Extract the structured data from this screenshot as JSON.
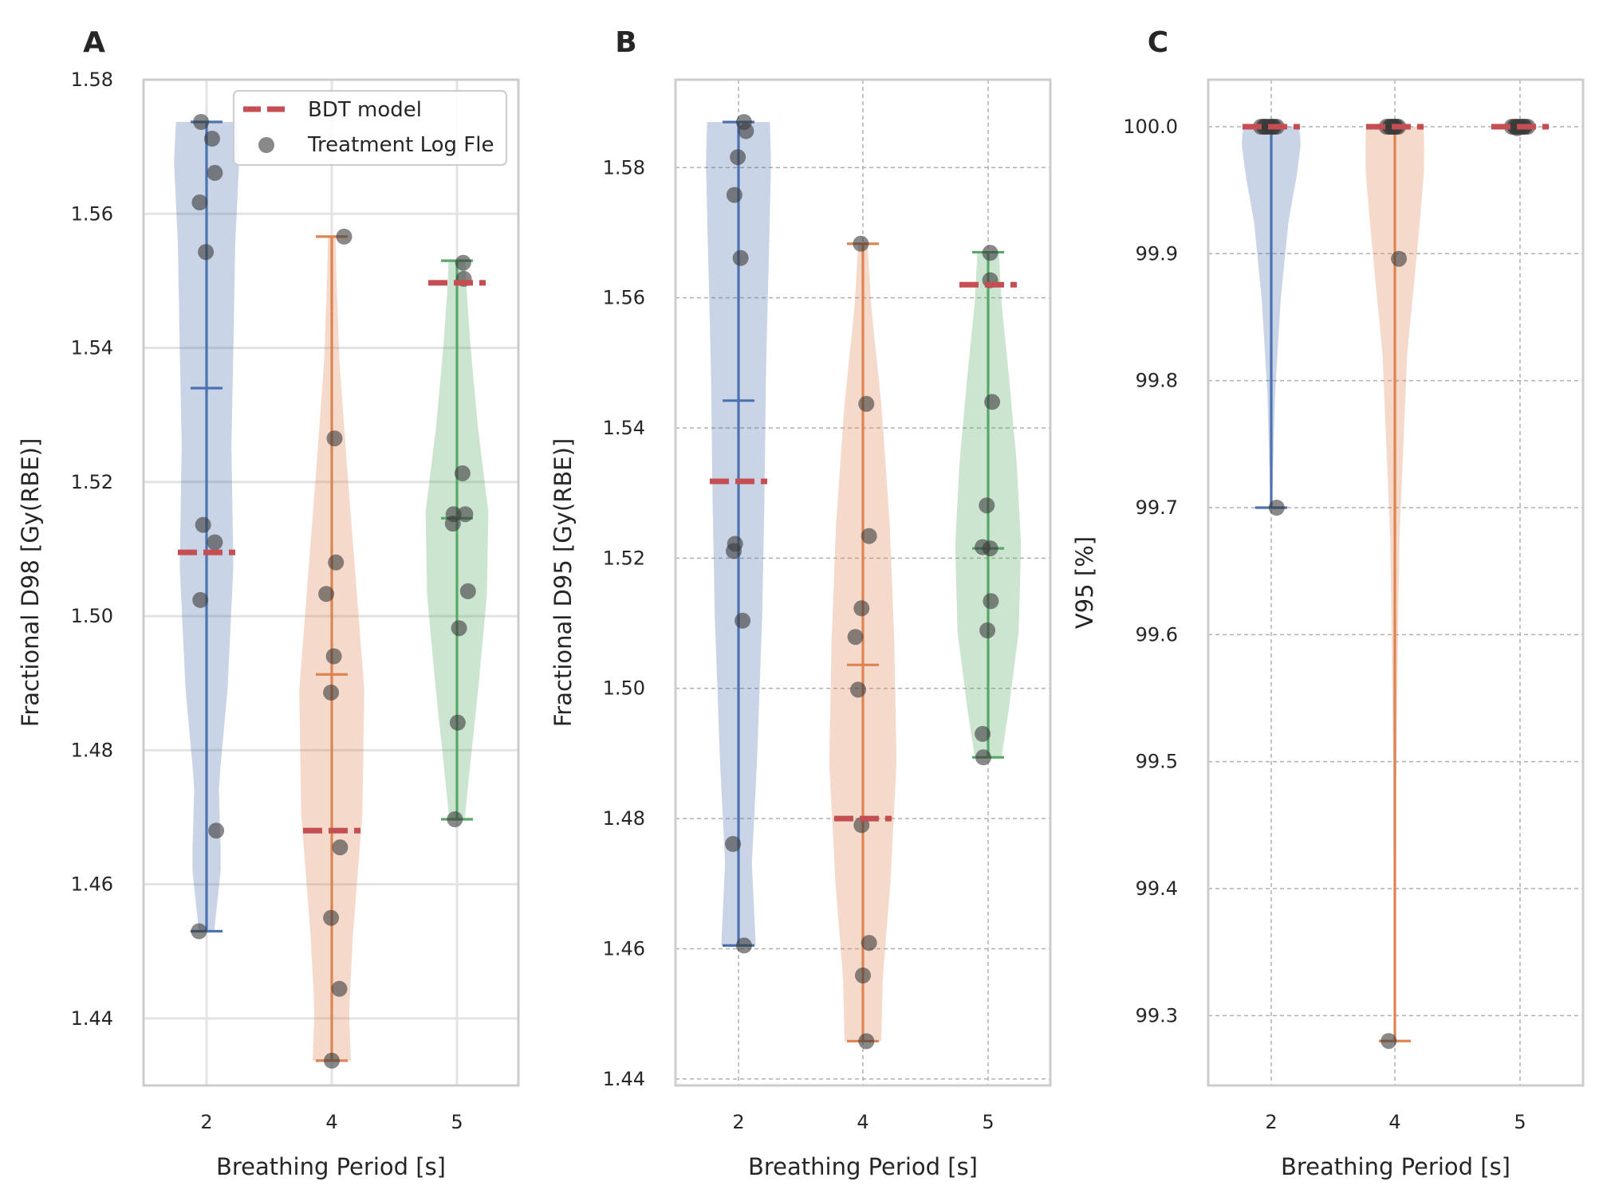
{
  "chart_data": [
    {
      "type": "violin",
      "panel_label": "A",
      "xlabel": "Breathing Period [s]",
      "ylabel": "Fractional D98 [Gy(RBE)]",
      "categories": [
        "2",
        "4",
        "5"
      ],
      "ylim": [
        1.43,
        1.58
      ],
      "yticks": [
        1.44,
        1.46,
        1.48,
        1.5,
        1.52,
        1.54,
        1.56,
        1.58
      ],
      "ytick_labels": [
        "1.44",
        "1.46",
        "1.48",
        "1.50",
        "1.52",
        "1.54",
        "1.56",
        "1.58"
      ],
      "grid": true,
      "grid_style": "solid",
      "legend": {
        "placement": "top-right",
        "entries": [
          {
            "label": "BDT model",
            "marker": "dashed-line",
            "color": "#c44e52"
          },
          {
            "label": "Treatment Log Fle",
            "marker": "circle",
            "color": "#555555"
          }
        ]
      },
      "series": [
        {
          "category": "2",
          "color": "#4c72b0",
          "min": 1.453,
          "max": 1.5737,
          "median": 1.534,
          "bdt_model": 1.5095,
          "points": [
            {
              "x": 1.92,
              "y": 1.5737
            },
            {
              "x": 2.08,
              "y": 1.5712
            },
            {
              "x": 2.12,
              "y": 1.5661
            },
            {
              "x": 1.9,
              "y": 1.5617
            },
            {
              "x": 1.99,
              "y": 1.5543
            },
            {
              "x": 1.95,
              "y": 1.5136
            },
            {
              "x": 2.12,
              "y": 1.511
            },
            {
              "x": 1.91,
              "y": 1.5024
            },
            {
              "x": 2.14,
              "y": 1.468
            },
            {
              "x": 1.89,
              "y": 1.453
            }
          ]
        },
        {
          "category": "4",
          "color": "#dd8452",
          "min": 1.4337,
          "max": 1.5566,
          "median": 1.4913,
          "bdt_model": 1.468,
          "points": [
            {
              "x": 4.18,
              "y": 1.5566
            },
            {
              "x": 4.04,
              "y": 1.5265
            },
            {
              "x": 4.06,
              "y": 1.508
            },
            {
              "x": 3.92,
              "y": 1.5033
            },
            {
              "x": 4.03,
              "y": 1.494
            },
            {
              "x": 3.99,
              "y": 1.4886
            },
            {
              "x": 4.12,
              "y": 1.4655
            },
            {
              "x": 3.99,
              "y": 1.455
            },
            {
              "x": 4.11,
              "y": 1.4444
            },
            {
              "x": 4.0,
              "y": 1.4337
            }
          ]
        },
        {
          "category": "5",
          "color": "#55a868",
          "min": 1.4697,
          "max": 1.553,
          "median": 1.5146,
          "bdt_model": 1.5497,
          "points": [
            {
              "x": 5.09,
              "y": 1.5527
            },
            {
              "x": 5.1,
              "y": 1.5503
            },
            {
              "x": 5.08,
              "y": 1.5213
            },
            {
              "x": 4.95,
              "y": 1.5152
            },
            {
              "x": 5.12,
              "y": 1.5152
            },
            {
              "x": 4.94,
              "y": 1.5138
            },
            {
              "x": 5.16,
              "y": 1.5037
            },
            {
              "x": 5.03,
              "y": 1.4982
            },
            {
              "x": 5.01,
              "y": 1.4841
            },
            {
              "x": 4.97,
              "y": 1.4697
            }
          ]
        }
      ]
    },
    {
      "type": "violin",
      "panel_label": "B",
      "xlabel": "Breathing Period [s]",
      "ylabel": "Fractional D95 [Gy(RBE)]",
      "categories": [
        "2",
        "4",
        "5"
      ],
      "ylim": [
        1.439,
        1.5935
      ],
      "yticks": [
        1.44,
        1.46,
        1.48,
        1.5,
        1.52,
        1.54,
        1.56,
        1.58
      ],
      "ytick_labels": [
        "1.44",
        "1.46",
        "1.48",
        "1.50",
        "1.52",
        "1.54",
        "1.56",
        "1.58"
      ],
      "grid": true,
      "grid_style": "dashed",
      "series": [
        {
          "category": "2",
          "color": "#4c72b0",
          "min": 1.4605,
          "max": 1.587,
          "median": 1.5442,
          "bdt_model": 1.5318,
          "points": [
            {
              "x": 2.08,
              "y": 1.587
            },
            {
              "x": 2.11,
              "y": 1.5856
            },
            {
              "x": 1.99,
              "y": 1.5816
            },
            {
              "x": 1.94,
              "y": 1.5758
            },
            {
              "x": 2.03,
              "y": 1.5661
            },
            {
              "x": 1.95,
              "y": 1.5222
            },
            {
              "x": 1.93,
              "y": 1.5211
            },
            {
              "x": 2.06,
              "y": 1.5104
            },
            {
              "x": 1.92,
              "y": 1.4761
            },
            {
              "x": 2.08,
              "y": 1.4605
            }
          ]
        },
        {
          "category": "4",
          "color": "#dd8452",
          "min": 1.4458,
          "max": 1.5683,
          "median": 1.5036,
          "bdt_model": 1.48,
          "points": [
            {
              "x": 3.97,
              "y": 1.5683
            },
            {
              "x": 4.05,
              "y": 1.5437
            },
            {
              "x": 4.09,
              "y": 1.5234
            },
            {
              "x": 3.98,
              "y": 1.5123
            },
            {
              "x": 3.89,
              "y": 1.5079
            },
            {
              "x": 3.93,
              "y": 1.4998
            },
            {
              "x": 3.98,
              "y": 1.479
            },
            {
              "x": 4.09,
              "y": 1.4609
            },
            {
              "x": 4.0,
              "y": 1.4559
            },
            {
              "x": 4.05,
              "y": 1.4458
            }
          ]
        },
        {
          "category": "5",
          "color": "#55a868",
          "min": 1.4894,
          "max": 1.567,
          "median": 1.5215,
          "bdt_model": 1.562,
          "points": [
            {
              "x": 5.03,
              "y": 1.5669
            },
            {
              "x": 5.03,
              "y": 1.5627
            },
            {
              "x": 5.06,
              "y": 1.544
            },
            {
              "x": 4.98,
              "y": 1.5281
            },
            {
              "x": 4.92,
              "y": 1.5217
            },
            {
              "x": 5.03,
              "y": 1.5215
            },
            {
              "x": 5.04,
              "y": 1.5134
            },
            {
              "x": 4.99,
              "y": 1.5089
            },
            {
              "x": 4.92,
              "y": 1.493
            },
            {
              "x": 4.93,
              "y": 1.4894
            }
          ]
        }
      ]
    },
    {
      "type": "violin",
      "panel_label": "C",
      "xlabel": "Breathing Period [s]",
      "ylabel": "V95 [%]",
      "categories": [
        "2",
        "4",
        "5"
      ],
      "ylim": [
        99.245,
        100.037
      ],
      "yticks": [
        99.3,
        99.4,
        99.5,
        99.6,
        99.7,
        99.8,
        99.9,
        100.0
      ],
      "ytick_labels": [
        "99.3",
        "99.4",
        "99.5",
        "99.6",
        "99.7",
        "99.8",
        "99.9",
        "100.0"
      ],
      "grid": true,
      "grid_style": "dashed",
      "series": [
        {
          "category": "2",
          "color": "#4c72b0",
          "min": 99.7,
          "max": 100.0,
          "median": 100.0,
          "bdt_model": 100.0,
          "points": [
            {
              "x": 1.85,
              "y": 100.0
            },
            {
              "x": 1.89,
              "y": 100.0
            },
            {
              "x": 1.93,
              "y": 100.0
            },
            {
              "x": 1.97,
              "y": 100.0
            },
            {
              "x": 2.0,
              "y": 100.0
            },
            {
              "x": 2.04,
              "y": 100.0
            },
            {
              "x": 2.08,
              "y": 100.0
            },
            {
              "x": 1.91,
              "y": 100.0
            },
            {
              "x": 2.02,
              "y": 100.0
            },
            {
              "x": 2.08,
              "y": 99.7
            }
          ]
        },
        {
          "category": "4",
          "color": "#dd8452",
          "min": 99.28,
          "max": 100.0,
          "median": 100.0,
          "bdt_model": 100.0,
          "points": [
            {
              "x": 3.88,
              "y": 100.0
            },
            {
              "x": 3.92,
              "y": 100.0
            },
            {
              "x": 3.96,
              "y": 100.0
            },
            {
              "x": 3.99,
              "y": 100.0
            },
            {
              "x": 4.02,
              "y": 100.0
            },
            {
              "x": 4.05,
              "y": 100.0
            },
            {
              "x": 3.94,
              "y": 100.0
            },
            {
              "x": 4.0,
              "y": 100.0
            },
            {
              "x": 4.06,
              "y": 99.896
            },
            {
              "x": 3.91,
              "y": 99.28
            }
          ]
        },
        {
          "category": "5",
          "color": "#55a868",
          "min": 99.999,
          "max": 100.0,
          "median": 99.999,
          "bdt_model": 100.0,
          "points": [
            {
              "x": 4.88,
              "y": 100.0
            },
            {
              "x": 4.92,
              "y": 100.0
            },
            {
              "x": 4.96,
              "y": 100.0
            },
            {
              "x": 5.0,
              "y": 100.0
            },
            {
              "x": 5.03,
              "y": 100.0
            },
            {
              "x": 5.07,
              "y": 100.0
            },
            {
              "x": 5.11,
              "y": 100.0
            },
            {
              "x": 4.94,
              "y": 100.0
            },
            {
              "x": 5.05,
              "y": 100.0
            },
            {
              "x": 4.96,
              "y": 99.9988
            }
          ]
        }
      ]
    }
  ]
}
